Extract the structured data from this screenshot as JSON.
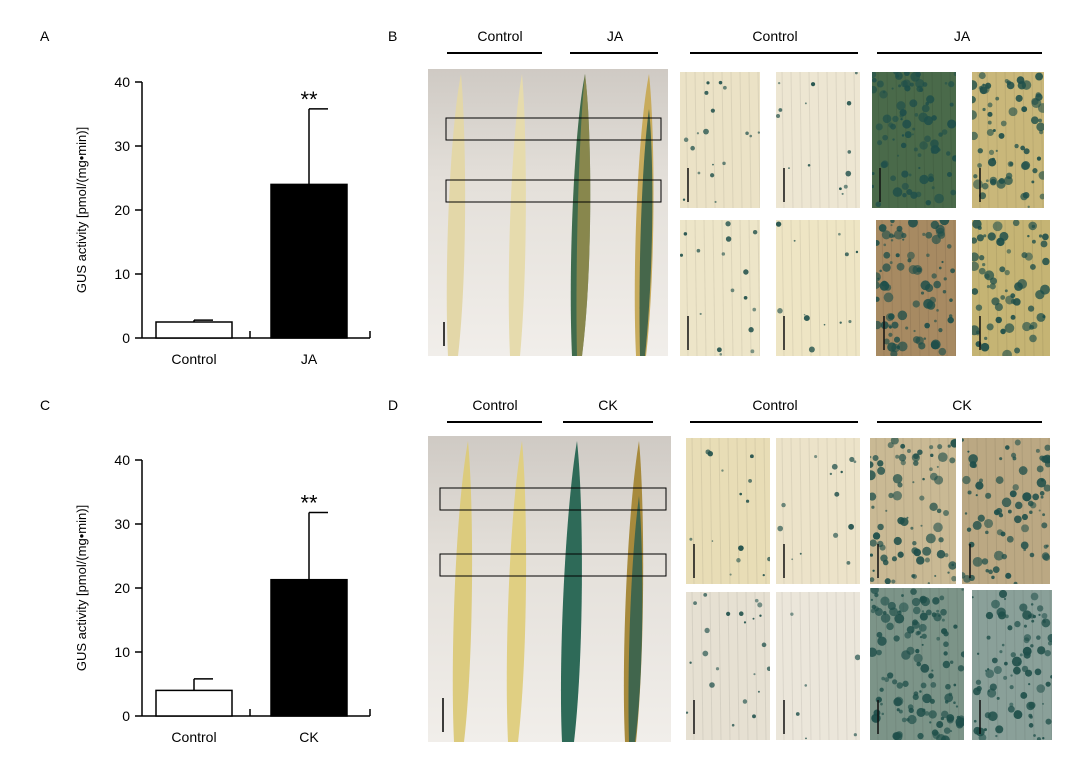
{
  "panels": {
    "A": {
      "letter": "A",
      "chart_data": {
        "type": "bar",
        "categories": [
          "Control",
          "JA"
        ],
        "values": [
          2.5,
          24
        ],
        "errors": [
          0.3,
          11.8
        ],
        "bar_colors": [
          "#ffffff",
          "#000000"
        ],
        "significance": [
          "",
          "**"
        ],
        "ylabel": "GUS activity [pmol/(mg•min)]",
        "ylim": [
          0,
          40
        ],
        "yticks": [
          0,
          10,
          20,
          30,
          40
        ]
      }
    },
    "B": {
      "letter": "B",
      "whole_headers": [
        "Control",
        "JA"
      ],
      "detail_headers": [
        "Control",
        "JA"
      ]
    },
    "C": {
      "letter": "C",
      "chart_data": {
        "type": "bar",
        "categories": [
          "Control",
          "CK"
        ],
        "values": [
          4,
          21.3
        ],
        "errors": [
          1.8,
          10.5
        ],
        "bar_colors": [
          "#ffffff",
          "#000000"
        ],
        "significance": [
          "",
          "**"
        ],
        "ylabel": "GUS activity [pmol/(mg•min)]",
        "ylim": [
          0,
          40
        ],
        "yticks": [
          0,
          10,
          20,
          30,
          40
        ]
      }
    },
    "D": {
      "letter": "D",
      "whole_headers": [
        "Control",
        "CK"
      ],
      "detail_headers": [
        "Control",
        "CK"
      ]
    }
  },
  "colors": {
    "stain_blue": "#1f4f4a",
    "leaf_cream": "#e8dfb8",
    "leaf_yellow": "#d9c978"
  }
}
